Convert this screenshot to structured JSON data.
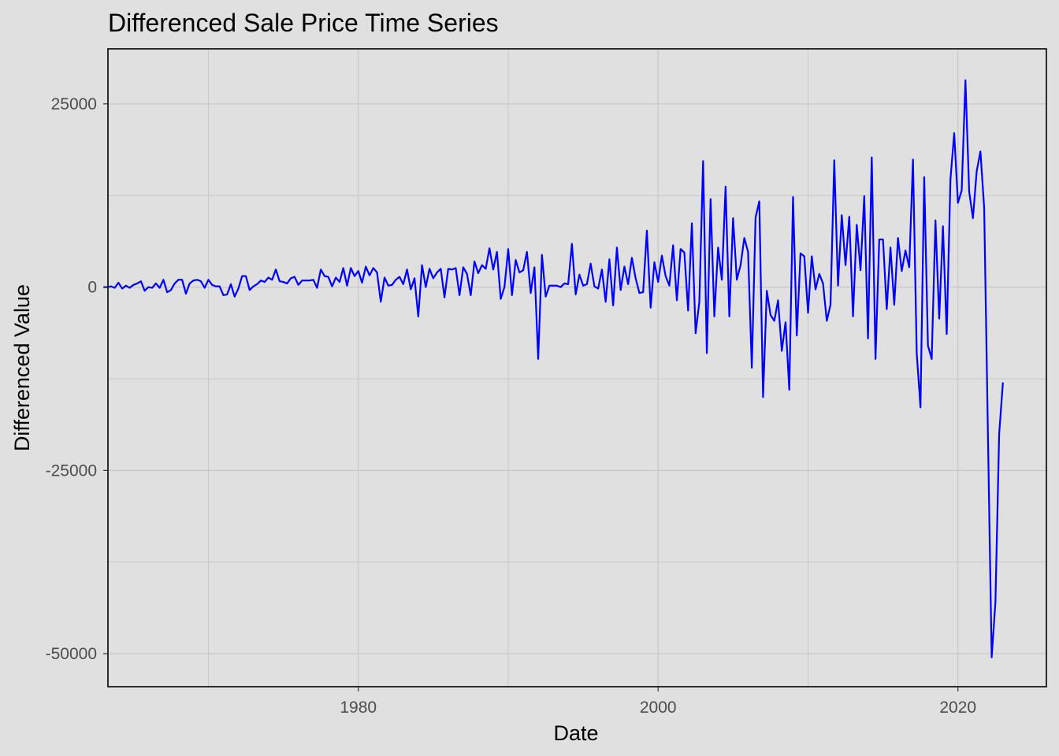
{
  "chart_data": {
    "type": "line",
    "title": "Differenced Sale Price Time Series",
    "xlabel": "Date",
    "ylabel": "Differenced Value",
    "xlim": [
      1963.3,
      2025.9
    ],
    "ylim": [
      -54500,
      32500
    ],
    "x_ticks": [
      1980,
      2000,
      2020
    ],
    "x_tick_labels": [
      "1980",
      "2000",
      "2020"
    ],
    "y_ticks": [
      25000,
      0,
      -25000,
      -50000
    ],
    "y_tick_labels": [
      "25000",
      "0",
      "-25000",
      "-50000"
    ],
    "grid": true,
    "legend": "none",
    "series": [
      {
        "color": "#0000ff",
        "x_start": 1963.0,
        "x_step": 0.25,
        "values": [
          0,
          0,
          100,
          -100,
          600,
          -200,
          200,
          -100,
          300,
          500,
          800,
          -500,
          0,
          -100,
          500,
          -100,
          1000,
          -700,
          -400,
          500,
          1000,
          1000,
          -900,
          500,
          900,
          1000,
          800,
          -100,
          1000,
          300,
          100,
          100,
          -1100,
          -1000,
          400,
          -1300,
          -200,
          1500,
          1500,
          -400,
          100,
          400,
          900,
          700,
          1300,
          1000,
          2400,
          800,
          700,
          500,
          1200,
          1400,
          300,
          900,
          900,
          900,
          1000,
          -100,
          2400,
          1500,
          1400,
          100,
          1300,
          700,
          2600,
          200,
          2600,
          1500,
          2200,
          600,
          2800,
          1600,
          2600,
          2000,
          -2000,
          1300,
          200,
          300,
          1000,
          1400,
          400,
          2400,
          -300,
          1200,
          -4000,
          3000,
          0,
          2500,
          1200,
          2000,
          2500,
          -1400,
          2500,
          2400,
          2600,
          -1100,
          2700,
          1800,
          -1100,
          3500,
          1900,
          3000,
          2500,
          5300,
          2400,
          4800,
          -1600,
          0,
          5200,
          -1100,
          3700,
          2000,
          2300,
          4800,
          -800,
          2700,
          -9800,
          4400,
          -1300,
          200,
          200,
          200,
          0,
          500,
          400,
          5900,
          -1000,
          1700,
          200,
          400,
          3200,
          100,
          -200,
          2400,
          -2000,
          3800,
          -2500,
          5400,
          -400,
          2800,
          400,
          4000,
          1200,
          -800,
          -700,
          7700,
          -2800,
          3400,
          700,
          4300,
          1500,
          200,
          5700,
          -1800,
          5200,
          4700,
          -3200,
          8700,
          -6300,
          -2000,
          17200,
          -9000,
          12000,
          -4000,
          5400,
          1000,
          13700,
          -4000,
          9400,
          1000,
          3000,
          6700,
          4800,
          -11000,
          9500,
          11700,
          -15000,
          -500,
          -3800,
          -4600,
          -1800,
          -8700,
          -4800,
          -14000,
          12300,
          -6600,
          4600,
          4200,
          -3500,
          4200,
          -300,
          1800,
          500,
          -4600,
          -2400,
          17300,
          200,
          9800,
          3000,
          9600,
          -4000,
          8500,
          2300,
          12400,
          -7000,
          17700,
          -9800,
          6500,
          6500,
          -3000,
          5400,
          -2400,
          6700,
          2200,
          5000,
          2700,
          17400,
          -9000,
          -16400,
          15000,
          -8000,
          -9800,
          9100,
          -4300,
          8300,
          -6400,
          14700,
          21000,
          11500,
          13200,
          28200,
          13000,
          9400,
          15800,
          18500,
          10800,
          -20000,
          -50500,
          -43000,
          -20000,
          -13000
        ]
      }
    ]
  }
}
